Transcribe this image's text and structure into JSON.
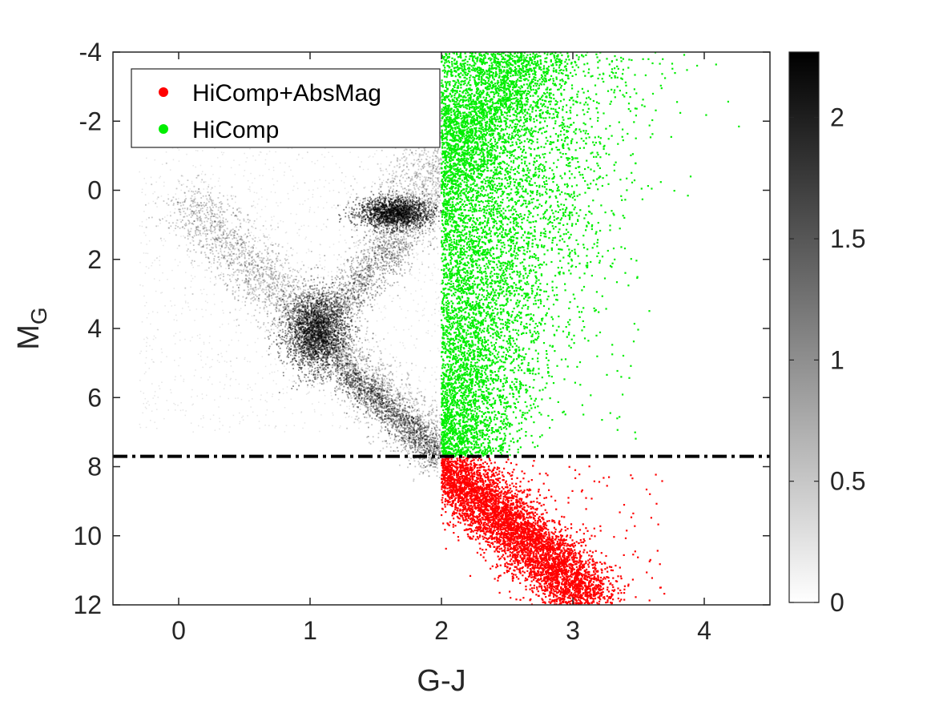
{
  "chart_data": {
    "type": "scatter",
    "title": "",
    "xlabel": "G-J",
    "ylabel_main": "M",
    "ylabel_sub": "G",
    "xlim": [
      -0.5,
      4.5
    ],
    "ylim": [
      12,
      -4
    ],
    "y_reversed": true,
    "x_ticks": [
      "0",
      "1",
      "2",
      "3",
      "4"
    ],
    "y_ticks": [
      "-4",
      "-2",
      "0",
      "2",
      "4",
      "6",
      "8",
      "10",
      "12"
    ],
    "grid": false,
    "cutoff_line": {
      "y": 7.7,
      "style": "dash-dot",
      "color": "#000000"
    },
    "color_cut_x": 2.0,
    "colorbar": {
      "min": 0,
      "max": 2.27,
      "ticks": [
        "0",
        "0.5",
        "1",
        "1.5",
        "2"
      ],
      "colormap": "gray-reversed"
    },
    "density_features": [
      {
        "name": "",
        "x": 1.05,
        "y": 4.1,
        "intensity": 1.0
      },
      {
        "name": "",
        "x": 1.65,
        "y": 0.65,
        "intensity": 0.85
      },
      {
        "name": "",
        "x": 1.75,
        "y": 6.8,
        "intensity": 0.7
      }
    ],
    "legend": {
      "position": "top-left",
      "entries": [
        {
          "label": "HiComp+AbsMag",
          "color": "#ff0000"
        },
        {
          "label": "HiComp",
          "color": "#00ee00"
        }
      ]
    },
    "series": [
      {
        "name": "HiComp",
        "color": "#00ee00",
        "x_range": [
          2.0,
          3.5
        ],
        "y_range": [
          -4,
          7.7
        ]
      },
      {
        "name": "HiComp+AbsMag",
        "color": "#ff0000",
        "x_range": [
          2.0,
          3.7
        ],
        "y_range": [
          7.7,
          12
        ]
      }
    ]
  }
}
